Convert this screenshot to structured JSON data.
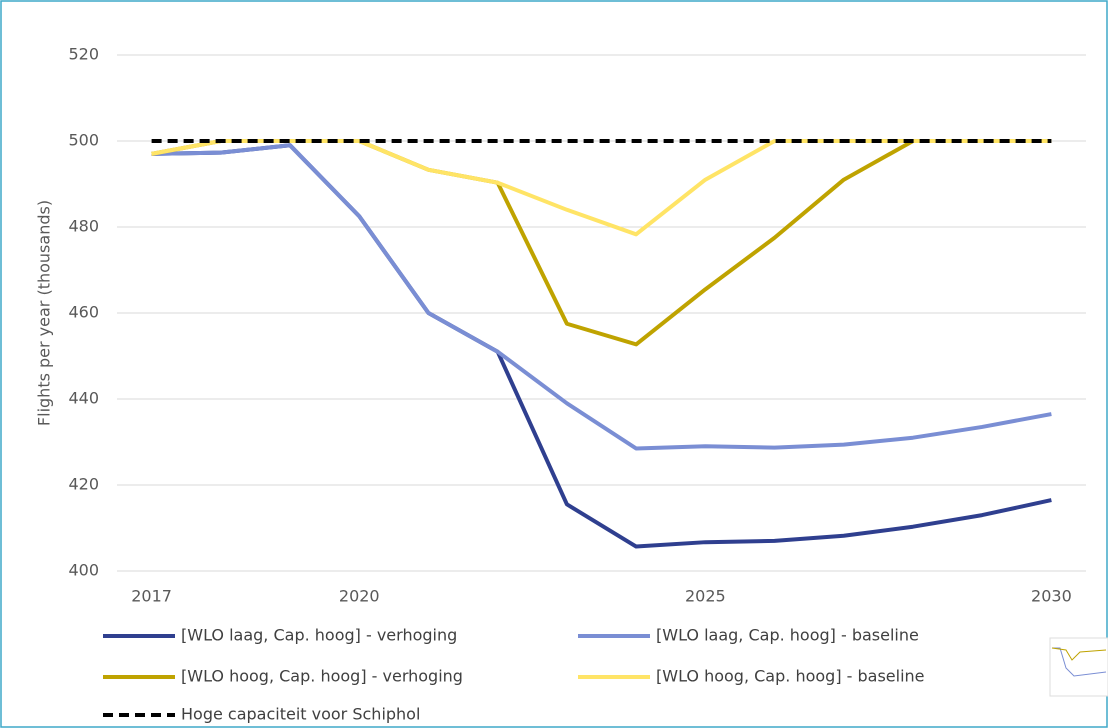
{
  "chart_data": {
    "type": "line",
    "y_label": "Flights per year (thousands)",
    "x": [
      2017,
      2018,
      2019,
      2020,
      2021,
      2022,
      2023,
      2024,
      2025,
      2026,
      2027,
      2028,
      2029,
      2030
    ],
    "xlim": [
      2016.5,
      2030.5
    ],
    "xticks": [
      2017,
      2020,
      2025,
      2030
    ],
    "ylim": [
      400,
      520
    ],
    "yticks": [
      400,
      420,
      440,
      460,
      480,
      500,
      520
    ],
    "grid": true,
    "legend": "bottom",
    "series": [
      {
        "name": "[WLO laag, Cap. hoog] - verhoging",
        "color": "#2f3f8f",
        "dashed": false,
        "values": [
          497,
          497.3,
          499,
          482.5,
          460,
          451,
          415.5,
          405.7,
          406.7,
          407,
          408.2,
          410.3,
          413,
          416.5
        ]
      },
      {
        "name": "[WLO laag, Cap. hoog] - baseline",
        "color": "#7a8ed4",
        "dashed": false,
        "values": [
          497,
          497.3,
          499,
          482.5,
          460,
          451,
          439,
          428.5,
          429,
          428.7,
          429.4,
          431,
          433.5,
          436.5
        ]
      },
      {
        "name": "[WLO hoog, Cap. hoog] - verhoging",
        "color": "#bfa300",
        "dashed": false,
        "values": [
          497,
          500,
          500,
          500,
          493.3,
          490.3,
          457.5,
          452.7,
          465.5,
          477.5,
          491,
          500,
          500,
          500
        ]
      },
      {
        "name": "[WLO hoog, Cap. hoog] - baseline",
        "color": "#ffe466",
        "dashed": false,
        "values": [
          497,
          500,
          500,
          500,
          493.3,
          490.3,
          484,
          478.3,
          491,
          500,
          500,
          500,
          500,
          500
        ]
      },
      {
        "name": "Hoge capaciteit voor Schiphol",
        "color": "#000000",
        "dashed": true,
        "values": [
          500,
          500,
          500,
          500,
          500,
          500,
          500,
          500,
          500,
          500,
          500,
          500,
          500,
          500
        ]
      }
    ]
  }
}
